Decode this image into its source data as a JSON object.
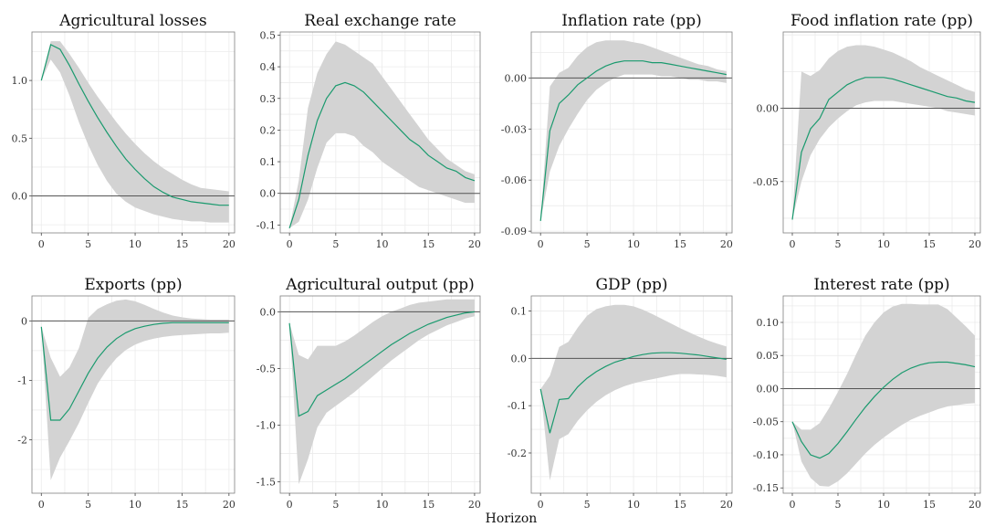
{
  "figure": {
    "xlabel": "Horizon"
  },
  "colors": {
    "line": "#1a9a6e",
    "band": "#d3d3d3",
    "grid": "#ebebeb",
    "zero": "#555555",
    "frame": "#7f7f7f"
  },
  "chart_data": [
    {
      "type": "line",
      "title": "Agricultural losses",
      "x": [
        0,
        1,
        2,
        3,
        4,
        5,
        6,
        7,
        8,
        9,
        10,
        11,
        12,
        13,
        14,
        15,
        16,
        17,
        18,
        19,
        20
      ],
      "xlim": [
        0,
        20
      ],
      "xticks": [
        0,
        5,
        10,
        15,
        20
      ],
      "xtick_labels": [
        "0",
        "5",
        "10",
        "15",
        "20"
      ],
      "ylim": [
        -0.32,
        1.42
      ],
      "yticks": [
        0,
        0.5,
        1.0
      ],
      "ytick_labels": [
        "0.0",
        "0.5",
        "1.0"
      ],
      "series": [
        {
          "values": [
            1.0,
            1.31,
            1.27,
            1.13,
            0.97,
            0.82,
            0.68,
            0.55,
            0.43,
            0.32,
            0.23,
            0.15,
            0.08,
            0.03,
            -0.01,
            -0.03,
            -0.05,
            -0.06,
            -0.07,
            -0.08,
            -0.08
          ],
          "lower": [
            1.0,
            1.18,
            1.07,
            0.87,
            0.64,
            0.44,
            0.27,
            0.13,
            0.02,
            -0.05,
            -0.1,
            -0.13,
            -0.16,
            -0.18,
            -0.2,
            -0.21,
            -0.22,
            -0.22,
            -0.23,
            -0.23,
            -0.23
          ],
          "upper": [
            1.0,
            1.34,
            1.34,
            1.23,
            1.11,
            0.98,
            0.86,
            0.75,
            0.64,
            0.54,
            0.45,
            0.37,
            0.3,
            0.24,
            0.19,
            0.14,
            0.1,
            0.07,
            0.06,
            0.05,
            0.04
          ]
        }
      ],
      "grid": true
    },
    {
      "type": "line",
      "title": "Real exchange rate",
      "x": [
        0,
        1,
        2,
        3,
        4,
        5,
        6,
        7,
        8,
        9,
        10,
        11,
        12,
        13,
        14,
        15,
        16,
        17,
        18,
        19,
        20
      ],
      "xlim": [
        0,
        20
      ],
      "xticks": [
        0,
        5,
        10,
        15,
        20
      ],
      "xtick_labels": [
        "0",
        "5",
        "10",
        "15",
        "20"
      ],
      "ylim": [
        -0.125,
        0.51
      ],
      "yticks": [
        -0.1,
        0,
        0.1,
        0.2,
        0.3,
        0.4,
        0.5
      ],
      "ytick_labels": [
        "-0.1",
        "0.0",
        "0.1",
        "0.2",
        "0.3",
        "0.4",
        "0.5"
      ],
      "series": [
        {
          "values": [
            -0.11,
            -0.02,
            0.12,
            0.23,
            0.3,
            0.34,
            0.35,
            0.34,
            0.32,
            0.29,
            0.26,
            0.23,
            0.2,
            0.17,
            0.15,
            0.12,
            0.1,
            0.08,
            0.07,
            0.05,
            0.04
          ],
          "lower": [
            -0.11,
            -0.09,
            -0.02,
            0.08,
            0.16,
            0.19,
            0.19,
            0.18,
            0.15,
            0.13,
            0.1,
            0.08,
            0.06,
            0.04,
            0.02,
            0.01,
            0.0,
            -0.01,
            -0.02,
            -0.03,
            -0.03
          ],
          "upper": [
            -0.11,
            0.04,
            0.27,
            0.38,
            0.44,
            0.48,
            0.47,
            0.45,
            0.43,
            0.41,
            0.37,
            0.33,
            0.29,
            0.25,
            0.21,
            0.17,
            0.14,
            0.11,
            0.09,
            0.07,
            0.06
          ]
        }
      ],
      "grid": true
    },
    {
      "type": "line",
      "title": "Inflation rate (pp)",
      "x": [
        0,
        1,
        2,
        3,
        4,
        5,
        6,
        7,
        8,
        9,
        10,
        11,
        12,
        13,
        14,
        15,
        16,
        17,
        18,
        19,
        20
      ],
      "xlim": [
        0,
        20
      ],
      "xticks": [
        0,
        5,
        10,
        15,
        20
      ],
      "xtick_labels": [
        "0",
        "5",
        "10",
        "15",
        "20"
      ],
      "ylim": [
        -0.091,
        0.027
      ],
      "yticks": [
        -0.09,
        -0.06,
        -0.03,
        0
      ],
      "ytick_labels": [
        "-0.09",
        "-0.06",
        "-0.03",
        "0.00"
      ],
      "series": [
        {
          "values": [
            -0.084,
            -0.031,
            -0.015,
            -0.01,
            -0.004,
            0.0,
            0.004,
            0.007,
            0.009,
            0.01,
            0.01,
            0.01,
            0.009,
            0.009,
            0.008,
            0.007,
            0.006,
            0.005,
            0.004,
            0.003,
            0.002
          ],
          "lower": [
            -0.084,
            -0.055,
            -0.04,
            -0.03,
            -0.021,
            -0.013,
            -0.007,
            -0.003,
            0.0,
            0.002,
            0.002,
            0.002,
            0.002,
            0.001,
            0.001,
            0.0,
            -0.001,
            -0.001,
            -0.002,
            -0.002,
            -0.003
          ],
          "upper": [
            -0.084,
            -0.005,
            0.003,
            0.006,
            0.013,
            0.018,
            0.021,
            0.022,
            0.022,
            0.022,
            0.021,
            0.02,
            0.018,
            0.016,
            0.014,
            0.012,
            0.01,
            0.008,
            0.007,
            0.005,
            0.004
          ]
        }
      ],
      "grid": true
    },
    {
      "type": "line",
      "title": "Food inflation rate (pp)",
      "x": [
        0,
        1,
        2,
        3,
        4,
        5,
        6,
        7,
        8,
        9,
        10,
        11,
        12,
        13,
        14,
        15,
        16,
        17,
        18,
        19,
        20
      ],
      "xlim": [
        0,
        20
      ],
      "xticks": [
        0,
        5,
        10,
        15,
        20
      ],
      "xtick_labels": [
        "0",
        "5",
        "10",
        "15",
        "20"
      ],
      "ylim": [
        -0.085,
        0.052
      ],
      "yticks": [
        -0.05,
        0
      ],
      "ytick_labels": [
        "-0.05",
        "0.00"
      ],
      "series": [
        {
          "values": [
            -0.076,
            -0.03,
            -0.014,
            -0.007,
            0.006,
            0.011,
            0.016,
            0.019,
            0.021,
            0.021,
            0.021,
            0.02,
            0.018,
            0.016,
            0.014,
            0.012,
            0.01,
            0.008,
            0.007,
            0.005,
            0.004
          ],
          "lower": [
            -0.076,
            -0.05,
            -0.032,
            -0.021,
            -0.013,
            -0.007,
            -0.002,
            0.002,
            0.004,
            0.005,
            0.005,
            0.005,
            0.004,
            0.003,
            0.002,
            0.001,
            0.0,
            -0.002,
            -0.003,
            -0.004,
            -0.005
          ],
          "upper": [
            -0.076,
            0.025,
            0.022,
            0.026,
            0.034,
            0.039,
            0.042,
            0.043,
            0.043,
            0.042,
            0.04,
            0.038,
            0.035,
            0.032,
            0.028,
            0.025,
            0.022,
            0.019,
            0.016,
            0.013,
            0.011
          ]
        }
      ],
      "grid": true
    },
    {
      "type": "line",
      "title": "Exports (pp)",
      "x": [
        0,
        1,
        2,
        3,
        4,
        5,
        6,
        7,
        8,
        9,
        10,
        11,
        12,
        13,
        14,
        15,
        16,
        17,
        18,
        19,
        20
      ],
      "xlim": [
        0,
        20
      ],
      "xticks": [
        0,
        5,
        10,
        15,
        20
      ],
      "xtick_labels": [
        "0",
        "5",
        "10",
        "15",
        "20"
      ],
      "ylim": [
        -2.9,
        0.42
      ],
      "yticks": [
        -2,
        -1,
        0
      ],
      "ytick_labels": [
        "-2",
        "-1",
        "0"
      ],
      "series": [
        {
          "values": [
            -0.1,
            -1.67,
            -1.67,
            -1.48,
            -1.18,
            -0.88,
            -0.63,
            -0.44,
            -0.3,
            -0.2,
            -0.13,
            -0.09,
            -0.06,
            -0.04,
            -0.03,
            -0.03,
            -0.03,
            -0.03,
            -0.03,
            -0.03,
            -0.03
          ],
          "lower": [
            -0.1,
            -2.68,
            -2.3,
            -2.02,
            -1.72,
            -1.38,
            -1.06,
            -0.82,
            -0.63,
            -0.49,
            -0.4,
            -0.34,
            -0.3,
            -0.27,
            -0.25,
            -0.24,
            -0.23,
            -0.22,
            -0.21,
            -0.21,
            -0.2
          ],
          "upper": [
            -0.1,
            -0.62,
            -0.94,
            -0.78,
            -0.46,
            0.05,
            0.2,
            0.28,
            0.34,
            0.36,
            0.33,
            0.27,
            0.2,
            0.14,
            0.09,
            0.06,
            0.04,
            0.03,
            0.02,
            0.02,
            0.02
          ]
        }
      ],
      "grid": true
    },
    {
      "type": "line",
      "title": "Agricultural output (pp)",
      "x": [
        0,
        1,
        2,
        3,
        4,
        5,
        6,
        7,
        8,
        9,
        10,
        11,
        12,
        13,
        14,
        15,
        16,
        17,
        18,
        19,
        20
      ],
      "xlim": [
        0,
        20
      ],
      "xticks": [
        0,
        5,
        10,
        15,
        20
      ],
      "xtick_labels": [
        "0",
        "5",
        "10",
        "15",
        "20"
      ],
      "ylim": [
        -1.6,
        0.14
      ],
      "yticks": [
        -1.5,
        -1.0,
        -0.5,
        0
      ],
      "ytick_labels": [
        "-1.5",
        "-1.0",
        "-0.5",
        "0.0"
      ],
      "series": [
        {
          "values": [
            -0.1,
            -0.92,
            -0.88,
            -0.74,
            -0.69,
            -0.64,
            -0.59,
            -0.53,
            -0.47,
            -0.41,
            -0.35,
            -0.29,
            -0.24,
            -0.19,
            -0.15,
            -0.11,
            -0.08,
            -0.05,
            -0.03,
            -0.01,
            0.0
          ],
          "lower": [
            -0.1,
            -1.52,
            -1.3,
            -1.02,
            -0.89,
            -0.83,
            -0.77,
            -0.71,
            -0.64,
            -0.57,
            -0.5,
            -0.43,
            -0.37,
            -0.31,
            -0.25,
            -0.2,
            -0.16,
            -0.12,
            -0.09,
            -0.06,
            -0.04
          ],
          "upper": [
            -0.1,
            -0.38,
            -0.42,
            -0.3,
            -0.3,
            -0.3,
            -0.26,
            -0.21,
            -0.15,
            -0.09,
            -0.04,
            0.0,
            0.03,
            0.06,
            0.08,
            0.09,
            0.1,
            0.11,
            0.11,
            0.11,
            0.11
          ]
        }
      ],
      "grid": true
    },
    {
      "type": "line",
      "title": "GDP (pp)",
      "x": [
        0,
        1,
        2,
        3,
        4,
        5,
        6,
        7,
        8,
        9,
        10,
        11,
        12,
        13,
        14,
        15,
        16,
        17,
        18,
        19,
        20
      ],
      "xlim": [
        0,
        20
      ],
      "xticks": [
        0,
        5,
        10,
        15,
        20
      ],
      "xtick_labels": [
        "0",
        "5",
        "10",
        "15",
        "20"
      ],
      "ylim": [
        -0.285,
        0.132
      ],
      "yticks": [
        -0.2,
        -0.1,
        0,
        0.1
      ],
      "ytick_labels": [
        "-0.2",
        "-0.1",
        "0.0",
        "0.1"
      ],
      "series": [
        {
          "values": [
            -0.065,
            -0.158,
            -0.087,
            -0.085,
            -0.06,
            -0.042,
            -0.028,
            -0.017,
            -0.008,
            -0.002,
            0.004,
            0.008,
            0.011,
            0.012,
            0.012,
            0.011,
            0.009,
            0.007,
            0.004,
            0.001,
            -0.002
          ],
          "lower": [
            -0.065,
            -0.258,
            -0.171,
            -0.16,
            -0.132,
            -0.11,
            -0.092,
            -0.078,
            -0.067,
            -0.059,
            -0.053,
            -0.048,
            -0.044,
            -0.04,
            -0.036,
            -0.033,
            -0.033,
            -0.034,
            -0.035,
            -0.037,
            -0.04
          ],
          "upper": [
            -0.065,
            -0.037,
            0.024,
            0.035,
            0.065,
            0.09,
            0.104,
            0.11,
            0.113,
            0.113,
            0.11,
            0.103,
            0.094,
            0.084,
            0.074,
            0.064,
            0.055,
            0.046,
            0.038,
            0.031,
            0.025
          ]
        }
      ],
      "grid": true
    },
    {
      "type": "line",
      "title": "Interest rate (pp)",
      "x": [
        0,
        1,
        2,
        3,
        4,
        5,
        6,
        7,
        8,
        9,
        10,
        11,
        12,
        13,
        14,
        15,
        16,
        17,
        18,
        19,
        20
      ],
      "xlim": [
        0,
        20
      ],
      "xticks": [
        0,
        5,
        10,
        15,
        20
      ],
      "xtick_labels": [
        "0",
        "5",
        "10",
        "15",
        "20"
      ],
      "ylim": [
        -0.158,
        0.14
      ],
      "yticks": [
        -0.15,
        -0.1,
        -0.05,
        0,
        0.05,
        0.1
      ],
      "ytick_labels": [
        "-0.15",
        "-0.10",
        "-0.05",
        "0.00",
        "0.05",
        "0.10"
      ],
      "series": [
        {
          "values": [
            -0.05,
            -0.08,
            -0.1,
            -0.105,
            -0.098,
            -0.083,
            -0.065,
            -0.046,
            -0.028,
            -0.012,
            0.002,
            0.014,
            0.024,
            0.031,
            0.036,
            0.039,
            0.04,
            0.04,
            0.038,
            0.036,
            0.033
          ],
          "lower": [
            -0.05,
            -0.11,
            -0.135,
            -0.147,
            -0.148,
            -0.14,
            -0.128,
            -0.113,
            -0.098,
            -0.085,
            -0.074,
            -0.064,
            -0.055,
            -0.047,
            -0.041,
            -0.036,
            -0.031,
            -0.027,
            -0.025,
            -0.023,
            -0.022
          ],
          "upper": [
            -0.05,
            -0.062,
            -0.062,
            -0.052,
            -0.03,
            -0.005,
            0.022,
            0.052,
            0.08,
            0.1,
            0.115,
            0.124,
            0.128,
            0.128,
            0.127,
            0.127,
            0.127,
            0.12,
            0.107,
            0.094,
            0.08
          ]
        }
      ],
      "grid": true
    }
  ]
}
